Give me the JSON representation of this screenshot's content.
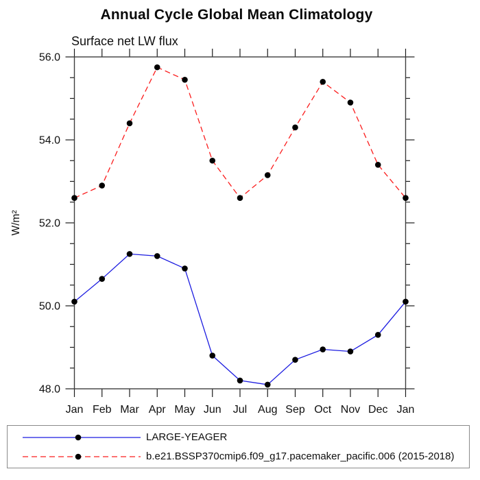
{
  "header": {
    "title": "Annual Cycle Global Mean Climatology",
    "subtitle": "Surface net LW flux"
  },
  "chart_data": {
    "type": "line",
    "title": "Annual Cycle Global Mean Climatology",
    "subtitle": "Surface net LW flux",
    "xlabel": "",
    "ylabel": "W/m²",
    "categories": [
      "Jan",
      "Feb",
      "Mar",
      "Apr",
      "May",
      "Jun",
      "Jul",
      "Aug",
      "Sep",
      "Oct",
      "Nov",
      "Dec",
      "Jan"
    ],
    "ylim": [
      48.0,
      56.0
    ],
    "ytick_major_step": 2.0,
    "ytick_minor_step": 0.5,
    "ytick_labels": [
      "48.0",
      "50.0",
      "52.0",
      "54.0",
      "56.0"
    ],
    "grid": false,
    "legend_position": "bottom-outside-box",
    "axis_color": "#3d3d3d",
    "tick_color": "#1a1a1a",
    "marker_shape": "filled-circle",
    "series": [
      {
        "name": "LARGE-YEAGER",
        "color": "#1b1be0",
        "line_style": "solid",
        "marker_color": "#000000",
        "values": [
          50.1,
          50.65,
          51.25,
          51.2,
          50.9,
          48.8,
          48.2,
          48.1,
          48.7,
          48.95,
          48.9,
          49.3,
          50.1
        ]
      },
      {
        "name": "b.e21.BSSP370cmip6.f09_g17.pacemaker_pacific.006 (2015-2018)",
        "color": "#fb1c1c",
        "line_style": "dashed",
        "marker_color": "#000000",
        "values": [
          52.6,
          52.9,
          54.4,
          55.75,
          55.45,
          53.5,
          52.6,
          53.15,
          54.3,
          55.4,
          54.9,
          53.4,
          52.6
        ]
      }
    ]
  }
}
